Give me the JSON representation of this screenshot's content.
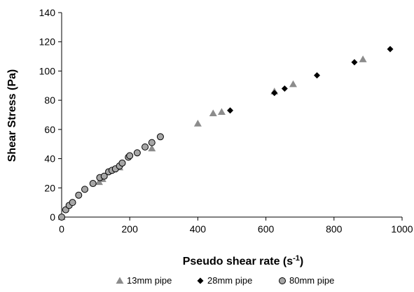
{
  "chart_data": {
    "type": "scatter",
    "title": "",
    "xlabel": "Pseudo shear rate (s",
    "xlabel_sup": "-1",
    "xlabel_suffix": ")",
    "ylabel": "Shear  Stress (Pa)",
    "xlim": [
      0,
      1000
    ],
    "ylim": [
      0,
      140
    ],
    "xticks": [
      0,
      200,
      400,
      600,
      800,
      1000
    ],
    "yticks": [
      0,
      20,
      40,
      60,
      80,
      100,
      120,
      140
    ],
    "xtick_labels": [
      "0",
      "200",
      "400",
      "600",
      "800",
      "1000"
    ],
    "ytick_labels": [
      "0",
      "20",
      "40",
      "60",
      "80",
      "100",
      "120",
      "140"
    ],
    "grid": false,
    "legend_position": "bottom",
    "series": [
      {
        "name": "13mm pipe",
        "marker": "triangle",
        "color": "#8c8c8c",
        "points": [
          [
            0,
            0
          ],
          [
            110,
            24
          ],
          [
            120,
            26
          ],
          [
            170,
            34
          ],
          [
            265,
            47
          ],
          [
            400,
            64
          ],
          [
            445,
            71
          ],
          [
            470,
            72
          ],
          [
            625,
            86
          ],
          [
            680,
            91
          ],
          [
            885,
            108
          ]
        ]
      },
      {
        "name": "28mm pipe",
        "marker": "diamond",
        "color": "#000000",
        "points": [
          [
            0,
            0
          ],
          [
            495,
            73
          ],
          [
            625,
            85
          ],
          [
            655,
            88
          ],
          [
            750,
            97
          ],
          [
            860,
            106
          ],
          [
            965,
            115
          ]
        ]
      },
      {
        "name": "80mm pipe",
        "marker": "circle",
        "color": "#a6a6a6",
        "points": [
          [
            0,
            0
          ],
          [
            12,
            5
          ],
          [
            22,
            8
          ],
          [
            32,
            10
          ],
          [
            50,
            15
          ],
          [
            68,
            19
          ],
          [
            92,
            23
          ],
          [
            112,
            27
          ],
          [
            125,
            28
          ],
          [
            138,
            31
          ],
          [
            148,
            32
          ],
          [
            158,
            33
          ],
          [
            170,
            35
          ],
          [
            178,
            37
          ],
          [
            196,
            41
          ],
          [
            200,
            42
          ],
          [
            222,
            44
          ],
          [
            245,
            48
          ],
          [
            265,
            51
          ],
          [
            290,
            55
          ]
        ]
      }
    ]
  }
}
